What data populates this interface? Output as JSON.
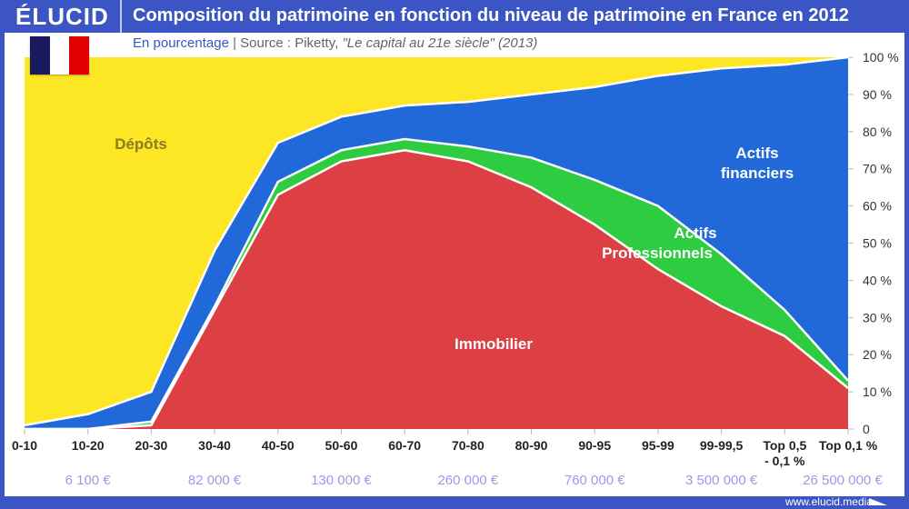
{
  "header": {
    "logo": "ÉLUCID",
    "title": "Composition du patrimoine en fonction du niveau de patrimoine en France en 2012"
  },
  "subtitle": {
    "unit": "En pourcentage",
    "separator": "|",
    "source": "Source : Piketty, ",
    "book": "\"Le capital au 21e siècle\" (2013)"
  },
  "flag": {
    "colors": [
      "#1a1a5e",
      "#ffffff",
      "#e00000"
    ]
  },
  "footer": {
    "url": "www.elucid.media"
  },
  "chart_data": {
    "type": "area",
    "stacked": true,
    "categories": [
      "0-10",
      "10-20",
      "20-30",
      "30-40",
      "40-50",
      "50-60",
      "60-70",
      "70-80",
      "80-90",
      "90-95",
      "95-99",
      "99-99,5",
      "Top 0,5 - 0,1 %",
      "Top 0,1 %"
    ],
    "wealth_labels": [
      {
        "at": "10-20",
        "text": "6 100 €"
      },
      {
        "at": "30-40",
        "text": "82 000 €"
      },
      {
        "at": "50-60",
        "text": "130 000 €"
      },
      {
        "at": "70-80",
        "text": "260 000 €"
      },
      {
        "at": "90-95",
        "text": "760 000 €"
      },
      {
        "at": "99-99,5",
        "text": "3 500 000 €"
      },
      {
        "at": "Top 0,1 %",
        "text": "26 500 000 €"
      }
    ],
    "ylim": [
      0,
      100
    ],
    "yticks": [
      "0",
      "10 %",
      "20 %",
      "30 %",
      "40 %",
      "50 %",
      "60 %",
      "70 %",
      "80 %",
      "90 %",
      "100 %"
    ],
    "series": [
      {
        "name": "Immobilier",
        "color": "#dd4044",
        "values": [
          0,
          0,
          1,
          32,
          63,
          72,
          75,
          72,
          65,
          55,
          43,
          33,
          25,
          11
        ]
      },
      {
        "name": "Actifs Professionnels",
        "color": "#2ecc40",
        "values": [
          0,
          0,
          1,
          1,
          3.5,
          3,
          3,
          4,
          8,
          12,
          17,
          14,
          7,
          2
        ]
      },
      {
        "name": "Actifs financiers",
        "color": "#2169d8",
        "values": [
          1,
          4,
          8,
          15,
          10.5,
          9,
          9,
          12,
          17,
          25,
          35,
          50,
          66,
          87
        ]
      },
      {
        "name": "Dépôts",
        "color": "#fde725",
        "values": [
          99,
          96,
          90,
          52,
          23,
          16,
          13,
          12,
          10,
          8,
          5,
          3,
          2,
          0
        ]
      }
    ],
    "labels": [
      {
        "series": "Dépôts",
        "lines": [
          "Dépôts"
        ],
        "color": "#8a7a20"
      },
      {
        "series": "Actifs financiers",
        "lines": [
          "Actifs",
          "financiers"
        ],
        "color": "#ffffff"
      },
      {
        "series": "Actifs Professionnels",
        "lines": [
          "Actifs",
          "Professionnels"
        ],
        "color": "#ffffff"
      },
      {
        "series": "Immobilier",
        "lines": [
          "Immobilier"
        ],
        "color": "#ffffff"
      }
    ],
    "wealth_label_color": "#9a9ae8"
  }
}
